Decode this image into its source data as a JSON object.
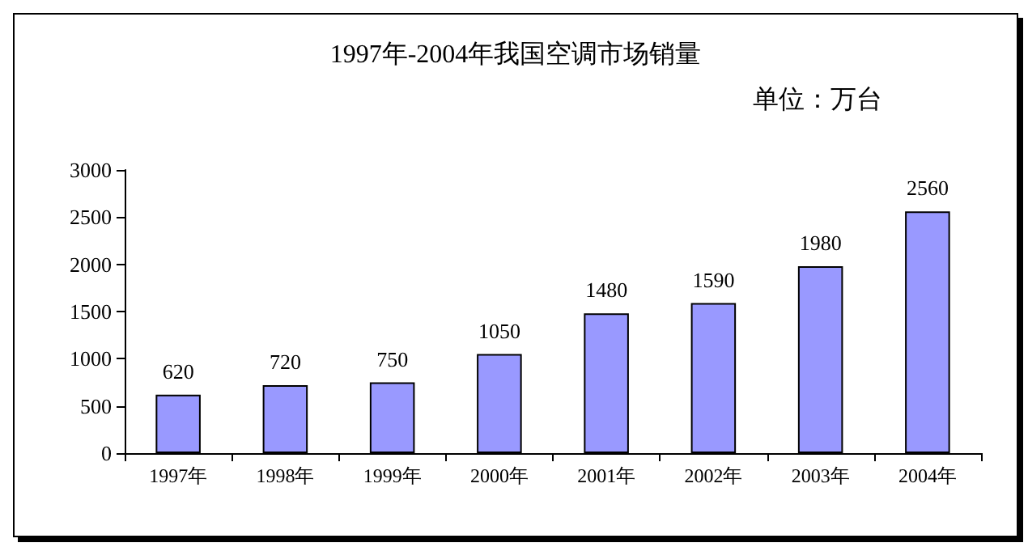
{
  "chart_data": {
    "type": "bar",
    "title": "1997年-2004年我国空调市场销量",
    "subtitle": "单位：万台",
    "categories": [
      "1997年",
      "1998年",
      "1999年",
      "2000年",
      "2001年",
      "2002年",
      "2003年",
      "2004年"
    ],
    "values": [
      620,
      720,
      750,
      1050,
      1480,
      1590,
      1980,
      2560
    ],
    "color": "#9999ff",
    "ylim": [
      0,
      3000
    ],
    "yticks": [
      0,
      500,
      1000,
      1500,
      2000,
      2500,
      3000
    ],
    "grid": false,
    "data_labels": true
  }
}
